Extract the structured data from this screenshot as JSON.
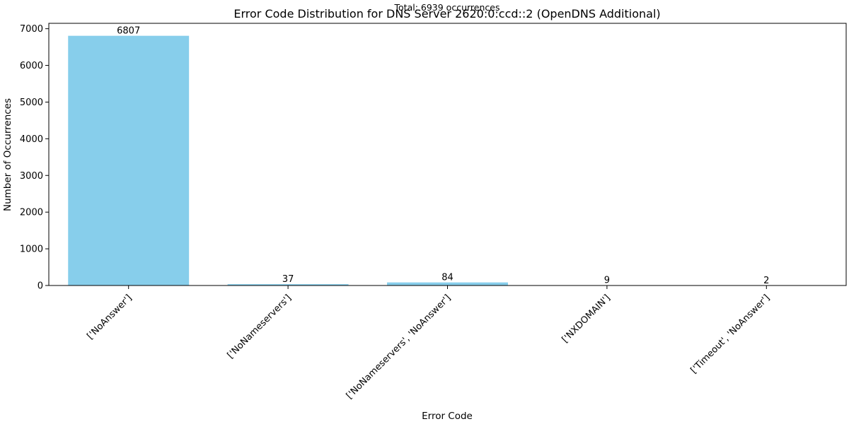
{
  "chart_data": {
    "type": "bar",
    "title": "Error Code Distribution for DNS Server 2620:0:ccd::2 (OpenDNS Additional)",
    "subtitle": "Total: 6939 occurrences",
    "xlabel": "Error Code",
    "ylabel": "Number of Occurrences",
    "categories": [
      "['NoAnswer']",
      "['NoNameservers']",
      "['NoNameservers', 'NoAnswer']",
      "['NXDOMAIN']",
      "['Timeout', 'NoAnswer']"
    ],
    "values": [
      6807,
      37,
      84,
      9,
      2
    ],
    "ylim": [
      0,
      7147
    ],
    "yticks": [
      0,
      1000,
      2000,
      3000,
      4000,
      5000,
      6000,
      7000
    ],
    "bar_color": "#87ceeb",
    "grid": false,
    "legend": "none"
  }
}
